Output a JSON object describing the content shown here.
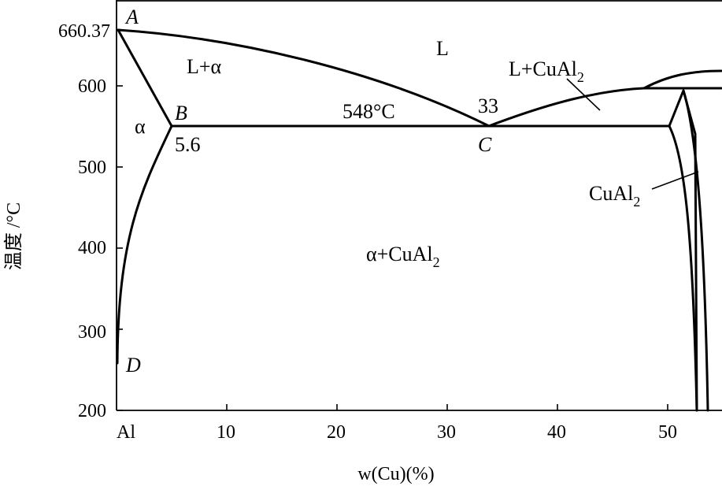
{
  "axes": {
    "x_title": "w(Cu)(%)",
    "y_title": "温度 /°C",
    "x_ticks": [
      {
        "value": 0,
        "label": "Al"
      },
      {
        "value": 10,
        "label": "10"
      },
      {
        "value": 20,
        "label": "20"
      },
      {
        "value": 30,
        "label": "30"
      },
      {
        "value": 40,
        "label": "40"
      },
      {
        "value": 50,
        "label": "50"
      }
    ],
    "y_ticks": [
      {
        "value": 200,
        "label": "200"
      },
      {
        "value": 300,
        "label": "300"
      },
      {
        "value": 400,
        "label": "400"
      },
      {
        "value": 500,
        "label": "500"
      },
      {
        "value": 600,
        "label": "600"
      },
      {
        "value": 660.37,
        "label": "660.37"
      }
    ],
    "x_range": [
      0,
      55
    ],
    "y_range": [
      200,
      680
    ]
  },
  "points": {
    "A": "A",
    "B": "B",
    "C": "C",
    "D": "D"
  },
  "values": {
    "b_composition": "5.6",
    "eutectic_composition": "33",
    "eutectic_temperature": "548°C"
  },
  "regions": {
    "liquid": "L",
    "liquid_alpha": "L+α",
    "liquid_cual2_main": "L+CuAl",
    "liquid_cual2_sub": "2",
    "alpha": "α",
    "alpha_cual2_main": "α+CuAl",
    "alpha_cual2_sub": "2",
    "cual2_main": "CuAl",
    "cual2_sub": "2"
  },
  "colors": {
    "line": "#000000",
    "background": "#ffffff"
  }
}
